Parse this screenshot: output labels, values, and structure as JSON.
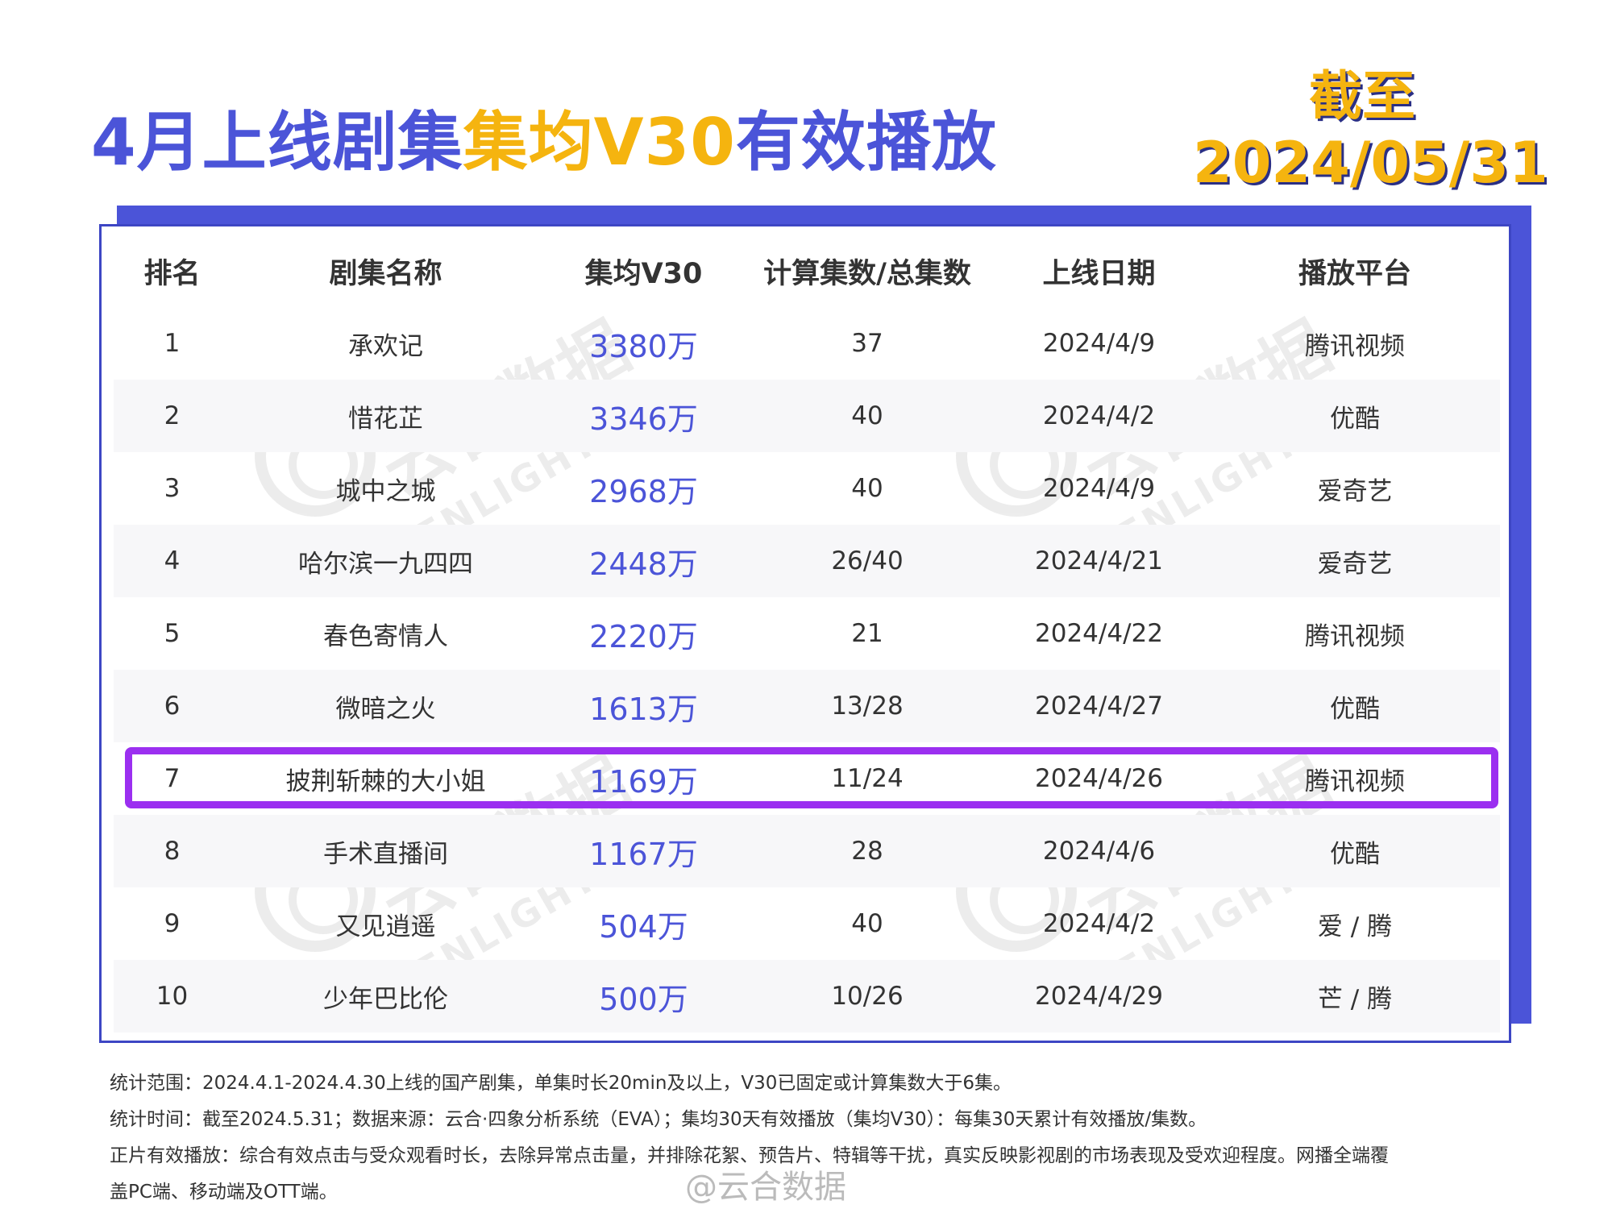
{
  "title": {
    "part1": "4月上线剧集",
    "part2": "集均V30",
    "part3": "有效播放"
  },
  "as_of": {
    "label": "截至",
    "date": "2024/05/31"
  },
  "colors": {
    "brand_blue": "#4b54d8",
    "accent_yellow": "#f5b40f",
    "highlight_purple": "#9b2ff0"
  },
  "watermark": {
    "text": "云合数据",
    "sub": "ENLIGHTENT"
  },
  "table": {
    "headers": [
      "排名",
      "剧集名称",
      "集均V30",
      "计算集数/总集数",
      "上线日期",
      "播放平台"
    ],
    "rows": [
      {
        "rank": "1",
        "name": "承欢记",
        "v30": "3380万",
        "episodes": "37",
        "date": "2024/4/9",
        "platform": "腾讯视频"
      },
      {
        "rank": "2",
        "name": "惜花芷",
        "v30": "3346万",
        "episodes": "40",
        "date": "2024/4/2",
        "platform": "优酷"
      },
      {
        "rank": "3",
        "name": "城中之城",
        "v30": "2968万",
        "episodes": "40",
        "date": "2024/4/9",
        "platform": "爱奇艺"
      },
      {
        "rank": "4",
        "name": "哈尔滨一九四四",
        "v30": "2448万",
        "episodes": "26/40",
        "date": "2024/4/21",
        "platform": "爱奇艺"
      },
      {
        "rank": "5",
        "name": "春色寄情人",
        "v30": "2220万",
        "episodes": "21",
        "date": "2024/4/22",
        "platform": "腾讯视频"
      },
      {
        "rank": "6",
        "name": "微暗之火",
        "v30": "1613万",
        "episodes": "13/28",
        "date": "2024/4/27",
        "platform": "优酷"
      },
      {
        "rank": "7",
        "name": "披荆斩棘的大小姐",
        "v30": "1169万",
        "episodes": "11/24",
        "date": "2024/4/26",
        "platform": "腾讯视频"
      },
      {
        "rank": "8",
        "name": "手术直播间",
        "v30": "1167万",
        "episodes": "28",
        "date": "2024/4/6",
        "platform": "优酷"
      },
      {
        "rank": "9",
        "name": "又见逍遥",
        "v30": "504万",
        "episodes": "40",
        "date": "2024/4/2",
        "platform": "爱 / 腾"
      },
      {
        "rank": "10",
        "name": "少年巴比伦",
        "v30": "500万",
        "episodes": "10/26",
        "date": "2024/4/29",
        "platform": "芒 / 腾"
      }
    ],
    "highlighted_rank": "7"
  },
  "notes": [
    "统计范围：2024.4.1-2024.4.30上线的国产剧集，单集时长20min及以上，V30已固定或计算集数大于6集。",
    "统计时间：截至2024.5.31；数据来源：云合·四象分析系统（EVA）；集均30天有效播放（集均V30）：每集30天累计有效播放/集数。",
    "正片有效播放：综合有效点击与受众观看时长，去除异常点击量，并排除花絮、预告片、特辑等干扰，真实反映影视剧的市场表现及受欢迎程度。网播全端覆",
    "盖PC端、移动端及OTT端。"
  ],
  "weibo_mark": "@云合数据"
}
